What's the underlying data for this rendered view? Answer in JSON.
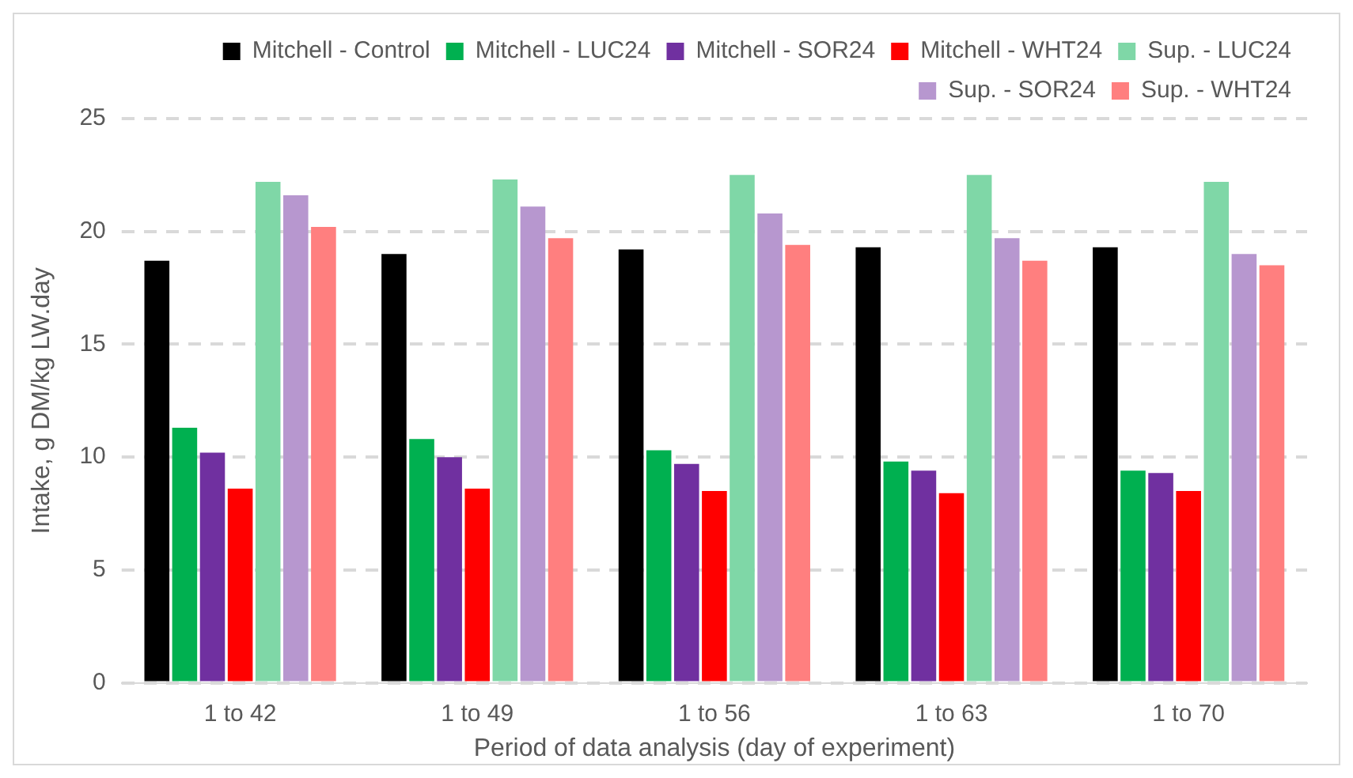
{
  "chart_data": {
    "type": "bar",
    "xlabel": "Period of data analysis (day of experiment)",
    "ylabel": "Intake, g DM/kg LW.day",
    "categories": [
      "1 to 42",
      "1 to 49",
      "1 to 56",
      "1 to 63",
      "1 to 70"
    ],
    "series": [
      {
        "name": "Mitchell - Control",
        "color": "#000000",
        "values": [
          18.7,
          19.0,
          19.2,
          19.3,
          19.3
        ]
      },
      {
        "name": "Mitchell - LUC24",
        "color": "#00b050",
        "values": [
          11.3,
          10.8,
          10.3,
          9.8,
          9.4
        ]
      },
      {
        "name": "Mitchell - SOR24",
        "color": "#7030a0",
        "values": [
          10.2,
          10.0,
          9.7,
          9.4,
          9.3
        ]
      },
      {
        "name": "Mitchell - WHT24",
        "color": "#ff0000",
        "values": [
          8.6,
          8.6,
          8.5,
          8.4,
          8.5
        ]
      },
      {
        "name": "Sup. - LUC24",
        "color": "#7fd7a7",
        "values": [
          22.2,
          22.3,
          22.5,
          22.5,
          22.2
        ]
      },
      {
        "name": "Sup. - SOR24",
        "color": "#b797cf",
        "values": [
          21.6,
          21.1,
          20.8,
          19.7,
          19.0
        ]
      },
      {
        "name": "Sup. - WHT24",
        "color": "#ff7f7f",
        "values": [
          20.2,
          19.7,
          19.4,
          18.7,
          18.5
        ]
      }
    ],
    "ylim": [
      0,
      25
    ],
    "yticks": [
      0,
      5,
      10,
      15,
      20,
      25
    ],
    "grid": "y",
    "legend": "top"
  }
}
